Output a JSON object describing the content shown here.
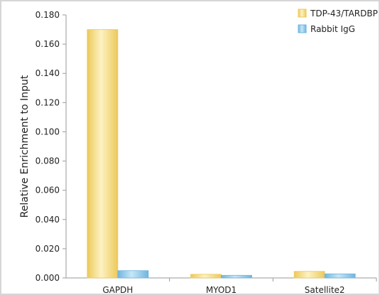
{
  "chart_data": {
    "type": "bar",
    "categories": [
      "GAPDH",
      "MYOD1",
      "Satellite2"
    ],
    "series": [
      {
        "name": "TDP-43/TARDBP",
        "values": [
          0.17,
          0.0025,
          0.0045
        ]
      },
      {
        "name": "Rabbit IgG",
        "values": [
          0.005,
          0.0018,
          0.0028
        ]
      }
    ],
    "title": "",
    "xlabel": "",
    "ylabel": "Relative Enrichment to Input",
    "ylim": [
      0,
      0.18
    ],
    "yticks": [
      "0.000",
      "0.020",
      "0.040",
      "0.060",
      "0.080",
      "0.100",
      "0.120",
      "0.140",
      "0.160",
      "0.180"
    ],
    "grid": false,
    "legend_position": "top-right",
    "colors": {
      "TDP-43/TARDBP": [
        "#fdf2c2",
        "#ecc95a"
      ],
      "Rabbit IgG": [
        "#c6e7f7",
        "#6fb5de"
      ],
      "axis": "#9a9a9a",
      "frame_border": "#d0d0d0"
    }
  }
}
